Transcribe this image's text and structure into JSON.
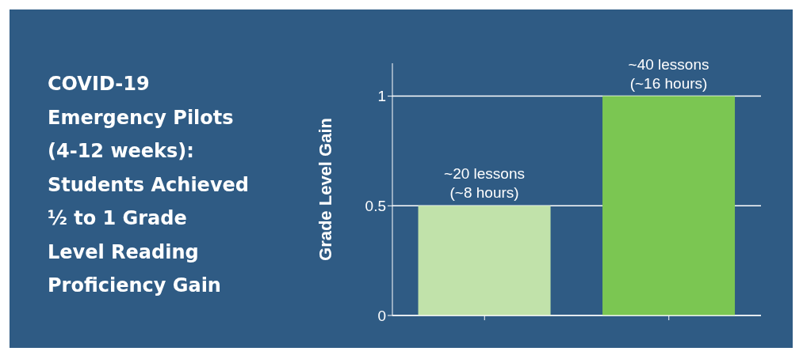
{
  "chart_data": {
    "type": "bar",
    "title": "COVID-19\nEmergency Pilots\n(4-12 weeks):\nStudents Achieved\n½ to 1 Grade\nLevel Reading\nProficiency Gain",
    "ylabel": "Grade Level Gain",
    "categories": [
      null,
      null
    ],
    "values": [
      0.5,
      1
    ],
    "colors": [
      "#c1e2aa",
      "#7bc652"
    ],
    "value_labels": [
      "~20 lessons\n(~8 hours)",
      "~40 lessons\n(~16 hours)"
    ],
    "ylim": [
      0,
      1.15
    ],
    "yticks": [
      0,
      0.5,
      1
    ],
    "grid": "y",
    "legend": false
  }
}
